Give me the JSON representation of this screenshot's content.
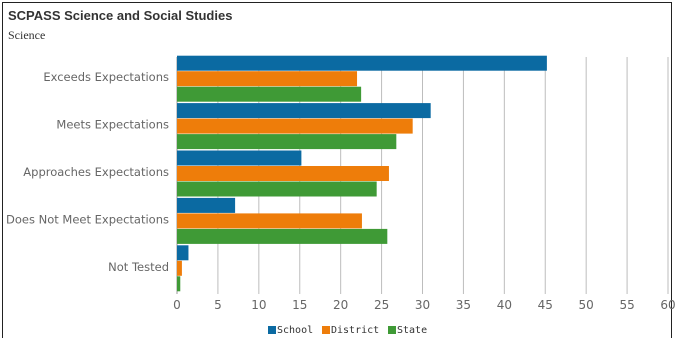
{
  "header": {
    "title": "SCPASS Science and Social Studies",
    "subtitle": "Science"
  },
  "chart_data": {
    "type": "bar",
    "orientation": "horizontal",
    "title": "SCPASS Science and Social Studies",
    "subtitle": "Science",
    "categories": [
      "Exceeds Expectations",
      "Meets Expectations",
      "Approaches Expectations",
      "Does Not Meet Expectations",
      "Not Tested"
    ],
    "series": [
      {
        "name": "School",
        "color": "#0b6aa2",
        "values": [
          45.2,
          31.0,
          15.2,
          7.1,
          1.4
        ]
      },
      {
        "name": "District",
        "color": "#ee7d0a",
        "values": [
          22.0,
          28.8,
          25.9,
          22.6,
          0.6
        ]
      },
      {
        "name": "State",
        "color": "#3f9a36",
        "values": [
          22.5,
          26.8,
          24.4,
          25.7,
          0.4
        ]
      }
    ],
    "xlim": [
      0,
      60
    ],
    "xticks": [
      0,
      5,
      10,
      15,
      20,
      25,
      30,
      35,
      40,
      45,
      50,
      55,
      60
    ],
    "grid": true,
    "legend_position": "bottom"
  }
}
